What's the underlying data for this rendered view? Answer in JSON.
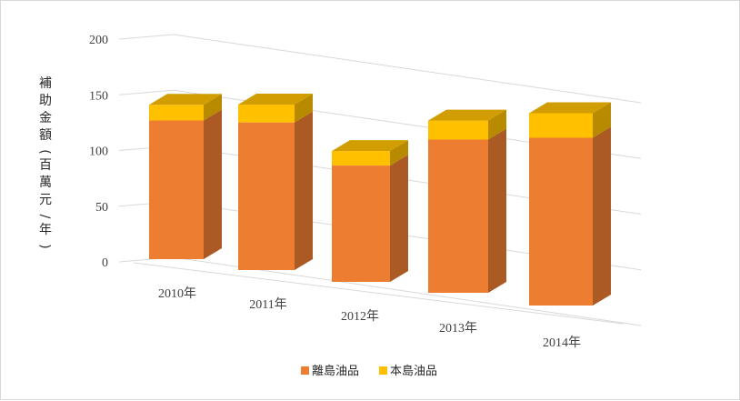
{
  "chart_data": {
    "type": "bar",
    "stacked": true,
    "three_d": true,
    "categories": [
      "2010年",
      "2011年",
      "2012年",
      "2013年",
      "2014年"
    ],
    "series": [
      {
        "name": "離島油品",
        "values": [
          124,
          132,
          104,
          137,
          150
        ]
      },
      {
        "name": "本島油品",
        "values": [
          14,
          16,
          13,
          17,
          22
        ]
      }
    ],
    "ylabel": "補助金額(百萬元/年)",
    "yticks": [
      "0",
      "50",
      "100",
      "150",
      "200"
    ],
    "ylim": [
      0,
      200
    ],
    "grid": true,
    "legend": "bottom",
    "colors": {
      "離島油品": "#ED7D31",
      "本島油品": "#FFC000",
      "grid": "#D9D9D9"
    }
  }
}
